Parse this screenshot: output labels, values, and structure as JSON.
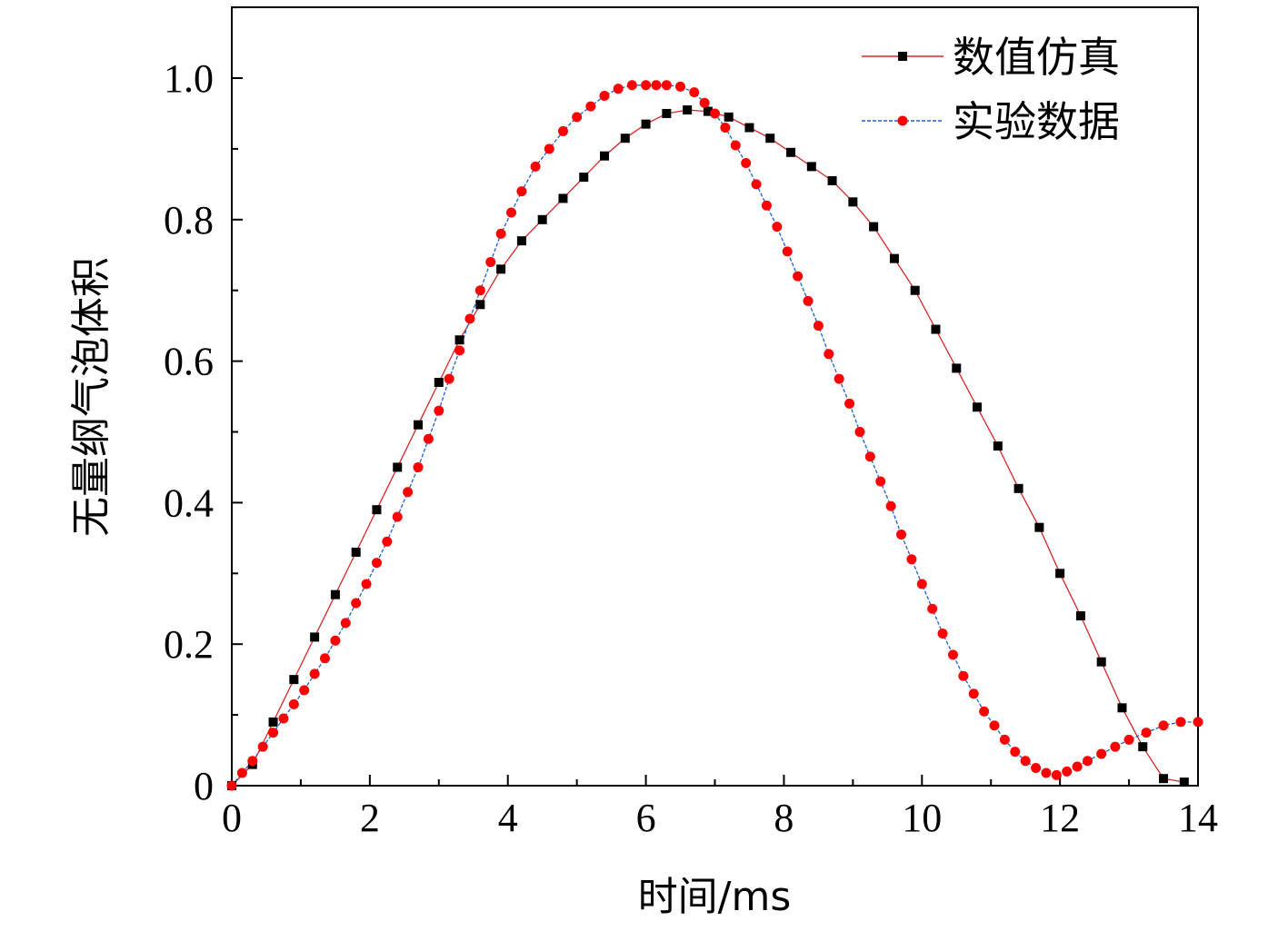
{
  "chart_data": {
    "type": "line",
    "title": "",
    "xlabel": "时间/ms",
    "ylabel": "无量纲气泡体积",
    "xlim": [
      0,
      14
    ],
    "ylim": [
      0,
      1.1
    ],
    "xticks": [
      0,
      2,
      4,
      6,
      8,
      10,
      12,
      14
    ],
    "xtick_labels": [
      "0",
      "2",
      "4",
      "6",
      "8",
      "10",
      "12",
      "14"
    ],
    "yticks": [
      0,
      0.2,
      0.4,
      0.6,
      0.8,
      1.0
    ],
    "ytick_labels": [
      "0",
      "0.2",
      "0.4",
      "0.6",
      "0.8",
      "1.0"
    ],
    "legend_position": "top-right",
    "series": [
      {
        "name": "数值仿真",
        "line_color": "#d62728",
        "marker": "square",
        "marker_color": "#000000",
        "x": [
          0,
          0.3,
          0.6,
          0.9,
          1.2,
          1.5,
          1.8,
          2.1,
          2.4,
          2.7,
          3.0,
          3.3,
          3.6,
          3.9,
          4.2,
          4.5,
          4.8,
          5.1,
          5.4,
          5.7,
          6.0,
          6.3,
          6.6,
          6.9,
          7.2,
          7.5,
          7.8,
          8.1,
          8.4,
          8.7,
          9.0,
          9.3,
          9.6,
          9.9,
          10.2,
          10.5,
          10.8,
          11.1,
          11.4,
          11.7,
          12.0,
          12.3,
          12.6,
          12.9,
          13.2,
          13.5,
          13.8
        ],
        "y": [
          0.0,
          0.03,
          0.09,
          0.15,
          0.21,
          0.27,
          0.33,
          0.39,
          0.45,
          0.51,
          0.57,
          0.63,
          0.68,
          0.73,
          0.77,
          0.8,
          0.83,
          0.86,
          0.89,
          0.915,
          0.935,
          0.95,
          0.955,
          0.953,
          0.945,
          0.93,
          0.915,
          0.895,
          0.875,
          0.855,
          0.825,
          0.79,
          0.745,
          0.7,
          0.645,
          0.59,
          0.535,
          0.48,
          0.42,
          0.365,
          0.3,
          0.24,
          0.175,
          0.11,
          0.055,
          0.01,
          0.005
        ]
      },
      {
        "name": "实验数据",
        "line_color": "#1f5fd6",
        "marker": "circle",
        "marker_color": "#ff0000",
        "x": [
          0,
          0.15,
          0.3,
          0.45,
          0.6,
          0.75,
          0.9,
          1.05,
          1.2,
          1.35,
          1.5,
          1.65,
          1.8,
          1.95,
          2.1,
          2.25,
          2.4,
          2.55,
          2.7,
          2.85,
          3.0,
          3.15,
          3.3,
          3.45,
          3.6,
          3.75,
          3.9,
          4.05,
          4.2,
          4.4,
          4.6,
          4.8,
          5.0,
          5.2,
          5.4,
          5.6,
          5.8,
          6.0,
          6.15,
          6.3,
          6.5,
          6.7,
          6.85,
          7.0,
          7.15,
          7.3,
          7.45,
          7.6,
          7.75,
          7.9,
          8.05,
          8.2,
          8.35,
          8.5,
          8.65,
          8.8,
          8.95,
          9.1,
          9.25,
          9.4,
          9.55,
          9.7,
          9.85,
          10.0,
          10.15,
          10.3,
          10.45,
          10.6,
          10.75,
          10.9,
          11.05,
          11.2,
          11.35,
          11.5,
          11.65,
          11.8,
          11.95,
          12.1,
          12.25,
          12.4,
          12.6,
          12.8,
          13.0,
          13.25,
          13.5,
          13.75,
          14.0
        ],
        "y": [
          0.0,
          0.018,
          0.035,
          0.055,
          0.075,
          0.095,
          0.115,
          0.135,
          0.158,
          0.18,
          0.205,
          0.23,
          0.258,
          0.285,
          0.315,
          0.345,
          0.38,
          0.415,
          0.45,
          0.49,
          0.53,
          0.575,
          0.615,
          0.66,
          0.7,
          0.74,
          0.78,
          0.81,
          0.84,
          0.875,
          0.9,
          0.925,
          0.945,
          0.96,
          0.975,
          0.985,
          0.99,
          0.99,
          0.99,
          0.99,
          0.988,
          0.98,
          0.965,
          0.95,
          0.93,
          0.905,
          0.88,
          0.85,
          0.82,
          0.79,
          0.755,
          0.72,
          0.685,
          0.65,
          0.61,
          0.575,
          0.54,
          0.5,
          0.465,
          0.43,
          0.395,
          0.355,
          0.32,
          0.285,
          0.25,
          0.215,
          0.185,
          0.155,
          0.13,
          0.105,
          0.085,
          0.065,
          0.048,
          0.035,
          0.025,
          0.018,
          0.015,
          0.02,
          0.027,
          0.035,
          0.045,
          0.055,
          0.065,
          0.075,
          0.085,
          0.09,
          0.09
        ]
      }
    ]
  }
}
